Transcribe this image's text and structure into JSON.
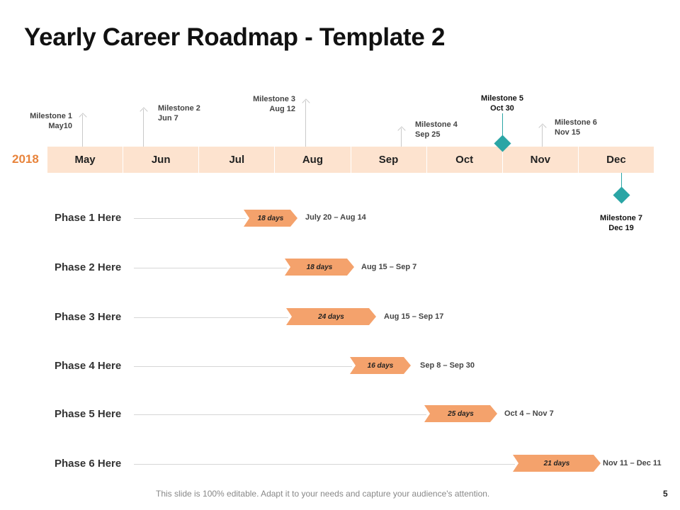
{
  "title": "Yearly Career Roadmap - Template 2",
  "year": "2018",
  "months": [
    "May",
    "Jun",
    "Jul",
    "Aug",
    "Sep",
    "Oct",
    "Nov",
    "Dec"
  ],
  "milestones": [
    {
      "name": "Milestone 1",
      "date": "May10"
    },
    {
      "name": "Milestone 2",
      "date": "Jun 7"
    },
    {
      "name": "Milestone 3",
      "date": "Aug 12"
    },
    {
      "name": "Milestone 4",
      "date": "Sep 25"
    },
    {
      "name": "Milestone 5",
      "date": "Oct 30"
    },
    {
      "name": "Milestone 6",
      "date": "Nov 15"
    },
    {
      "name": "Milestone 7",
      "date": "Dec 19"
    }
  ],
  "phases": [
    {
      "label": "Phase 1 Here",
      "duration": "18 days",
      "dates": "July 20 – Aug 14"
    },
    {
      "label": "Phase 2 Here",
      "duration": "18 days",
      "dates": "Aug 15 – Sep 7"
    },
    {
      "label": "Phase 3 Here",
      "duration": "24 days",
      "dates": "Aug 15 – Sep 17"
    },
    {
      "label": "Phase 4 Here",
      "duration": "16 days",
      "dates": "Sep 8 – Sep 30"
    },
    {
      "label": "Phase 5 Here",
      "duration": "25 days",
      "dates": "Oct 4 – Nov 7"
    },
    {
      "label": "Phase 6 Here",
      "duration": "21 days",
      "dates": "Nov 11 – Dec 11"
    }
  ],
  "colors": {
    "accent_orange": "#E8843C",
    "month_bar": "#FDE3CF",
    "phase_bar": "#F4A26C",
    "milestone_teal": "#2AA5A5"
  },
  "footer": {
    "text": "This slide is 100% editable. Adapt it to your needs and capture your audience's attention.",
    "page": "5"
  }
}
